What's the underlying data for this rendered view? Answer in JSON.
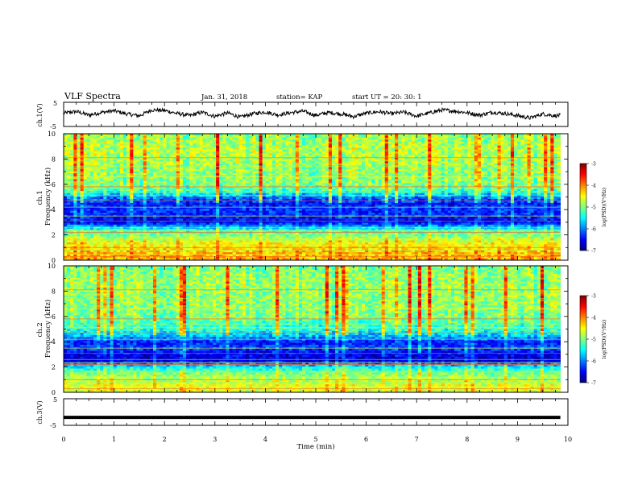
{
  "header": {
    "title": "VLF Spectra",
    "date": "Jan. 31, 2018",
    "station": "station= KAP",
    "start_time": "start UT =  20: 30: 1"
  },
  "chart_data": [
    {
      "type": "line",
      "panel": "ch1-waveform",
      "ylabel": "ch.1(V)",
      "ylim": [
        -5,
        5
      ],
      "yticks": [
        "5",
        "-5"
      ],
      "x_range_min": [
        0,
        9.85
      ],
      "description_values": "noisy trace fluctuating roughly between -2 and 2 V",
      "series": [
        {
          "x": [
            0,
            0.25,
            0.5,
            0.75,
            1.0,
            1.25,
            1.5,
            1.75,
            2.0,
            2.25,
            2.5,
            2.75,
            3.0,
            3.25,
            3.5,
            3.75,
            4.0,
            4.25,
            4.5,
            4.75,
            5.0,
            5.25,
            5.5,
            5.75,
            6.0,
            6.25,
            6.5,
            6.75,
            7.0,
            7.25,
            7.5,
            7.75,
            8.0,
            8.25,
            8.5,
            8.75,
            9.0,
            9.25,
            9.5,
            9.75,
            9.85
          ],
          "y": [
            0.5,
            1.2,
            -0.3,
            0.8,
            1.5,
            0.2,
            -0.6,
            1.9,
            1.6,
            0.4,
            -0.5,
            0.9,
            -0.8,
            0.6,
            -1.2,
            0.3,
            1.0,
            -0.2,
            0.7,
            1.3,
            -0.4,
            0.8,
            0.2,
            -0.9,
            0.5,
            1.1,
            0.3,
            0.9,
            -0.7,
            0.6,
            1.8,
            1.4,
            0.7,
            -0.3,
            0.9,
            0.4,
            -0.5,
            -1.5,
            0.2,
            -0.6,
            -0.4
          ]
        }
      ]
    },
    {
      "type": "heatmap",
      "panel": "ch1-spectrogram",
      "ylabel": "ch.1\nFrequency (kHz)",
      "ylim": [
        0,
        10
      ],
      "yticks": [
        "0",
        "2",
        "4",
        "6",
        "8",
        "10"
      ],
      "colorbar": {
        "label": "log(PSD)(V²/Hz)",
        "range": [
          -7,
          -3
        ],
        "ticks": [
          "-3",
          "-4",
          "-5",
          "-6",
          "-7"
        ]
      },
      "band_profile": {
        "freq_khz": [
          0.5,
          1.5,
          2.5,
          3.0,
          3.5,
          4.0,
          4.5,
          5.0,
          5.5,
          6.0,
          7.0,
          8.0,
          9.0,
          9.8
        ],
        "log_psd": [
          -4.2,
          -4.6,
          -5.5,
          -6.6,
          -6.4,
          -6.3,
          -6.4,
          -6.0,
          -5.2,
          -5.0,
          -4.9,
          -4.8,
          -4.8,
          -4.9
        ]
      }
    },
    {
      "type": "heatmap",
      "panel": "ch2-spectrogram",
      "ylabel": "ch.2\nFrequency (kHz)",
      "ylim": [
        0,
        10
      ],
      "yticks": [
        "0",
        "2",
        "4",
        "6",
        "8",
        "10"
      ],
      "colorbar": {
        "label": "log(PSD)(V²/Hz)",
        "range": [
          -7,
          -3
        ],
        "ticks": [
          "-3",
          "-4",
          "-5",
          "-6",
          "-7"
        ]
      },
      "band_profile": {
        "freq_khz": [
          0.5,
          1.5,
          2.0,
          2.5,
          3.0,
          3.5,
          4.0,
          4.5,
          5.0,
          5.5,
          6.0,
          7.0,
          8.0,
          9.0,
          9.8
        ],
        "log_psd": [
          -4.6,
          -5.0,
          -5.5,
          -6.7,
          -6.6,
          -6.2,
          -6.4,
          -5.7,
          -5.3,
          -5.2,
          -5.0,
          -4.9,
          -4.9,
          -4.9,
          -5.0
        ]
      }
    },
    {
      "type": "line",
      "panel": "ch3-waveform",
      "ylabel": "ch.3(V)",
      "ylim": [
        -5,
        5
      ],
      "yticks": [
        "5",
        "-5"
      ],
      "series": [
        {
          "x": [
            0,
            9.85
          ],
          "y": [
            -2,
            -2
          ]
        }
      ]
    }
  ],
  "x_axis": {
    "label": "Time (min)",
    "range": [
      0,
      10
    ],
    "ticks": [
      "0",
      "1",
      "2",
      "3",
      "4",
      "5",
      "6",
      "7",
      "8",
      "9",
      "10"
    ]
  }
}
